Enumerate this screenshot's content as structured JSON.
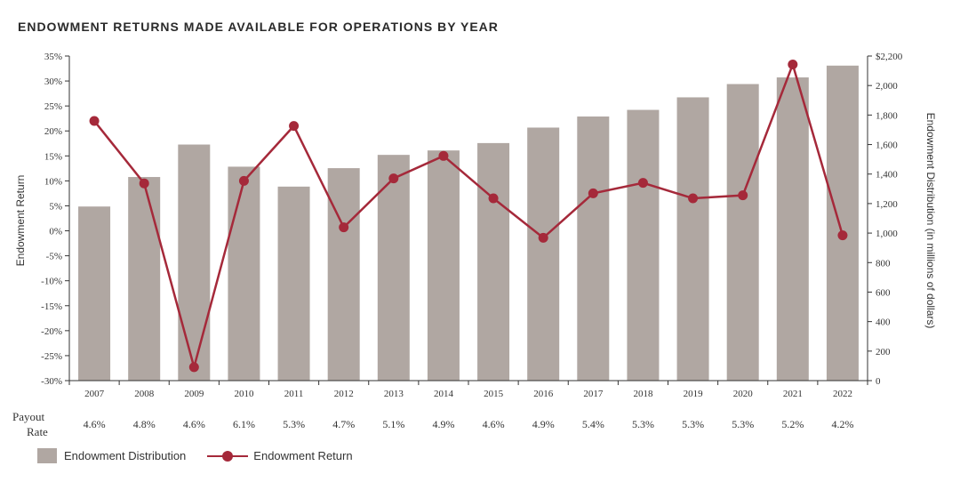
{
  "title": "ENDOWMENT RETURNS MADE AVAILABLE FOR OPERATIONS BY YEAR",
  "colors": {
    "bar": "#b0a7a2",
    "line": "#a5293a",
    "axis": "#333333"
  },
  "payout": {
    "label_line1": "Payout",
    "label_line2": "Rate",
    "values": [
      "4.6%",
      "4.8%",
      "4.6%",
      "6.1%",
      "5.3%",
      "4.7%",
      "5.1%",
      "4.9%",
      "4.6%",
      "4.9%",
      "5.4%",
      "5.3%",
      "5.3%",
      "5.3%",
      "5.2%",
      "4.2%"
    ]
  },
  "legend": {
    "bar_label": "Endowment Distribution",
    "line_label": "Endowment Return"
  },
  "chart_data": {
    "type": "bar",
    "title": "ENDOWMENT RETURNS MADE AVAILABLE FOR OPERATIONS BY YEAR",
    "categories": [
      "2007",
      "2008",
      "2009",
      "2010",
      "2011",
      "2012",
      "2013",
      "2014",
      "2015",
      "2016",
      "2017",
      "2018",
      "2019",
      "2020",
      "2021",
      "2022"
    ],
    "series": [
      {
        "name": "Endowment Distribution",
        "type": "bar",
        "axis": "right",
        "values": [
          1180,
          1380,
          1600,
          1450,
          1315,
          1440,
          1530,
          1560,
          1610,
          1715,
          1790,
          1835,
          1920,
          2010,
          2055,
          2135
        ]
      },
      {
        "name": "Endowment Return",
        "type": "line",
        "axis": "left",
        "values": [
          22.0,
          9.5,
          -27.3,
          10.0,
          21.0,
          0.7,
          10.5,
          15.0,
          6.5,
          -1.4,
          7.5,
          9.6,
          6.5,
          7.1,
          33.3,
          -0.9
        ]
      }
    ],
    "y_left": {
      "label": "Endowment Return",
      "ylim": [
        -30,
        35
      ],
      "ticks": [
        35,
        30,
        25,
        20,
        15,
        10,
        5,
        0,
        -5,
        -10,
        -15,
        -20,
        -25,
        -30
      ],
      "tick_labels": [
        "35%",
        "30%",
        "25%",
        "20%",
        "15%",
        "10%",
        "5%",
        "0%",
        "-5%",
        "-10%",
        "-15%",
        "-20%",
        "-25%",
        "-30%"
      ]
    },
    "y_right": {
      "label": "Endowment Distribution (in millions of dollars)",
      "ylim": [
        0,
        2200
      ],
      "ticks": [
        2200,
        2000,
        1800,
        1600,
        1400,
        1200,
        1000,
        800,
        600,
        400,
        200,
        0
      ],
      "tick_labels": [
        "$2,200",
        "2,000",
        "1,800",
        "1,600",
        "1,400",
        "1,200",
        "1,000",
        "800",
        "600",
        "400",
        "200",
        "0"
      ]
    },
    "grid": false,
    "legend_position": "bottom-left"
  }
}
